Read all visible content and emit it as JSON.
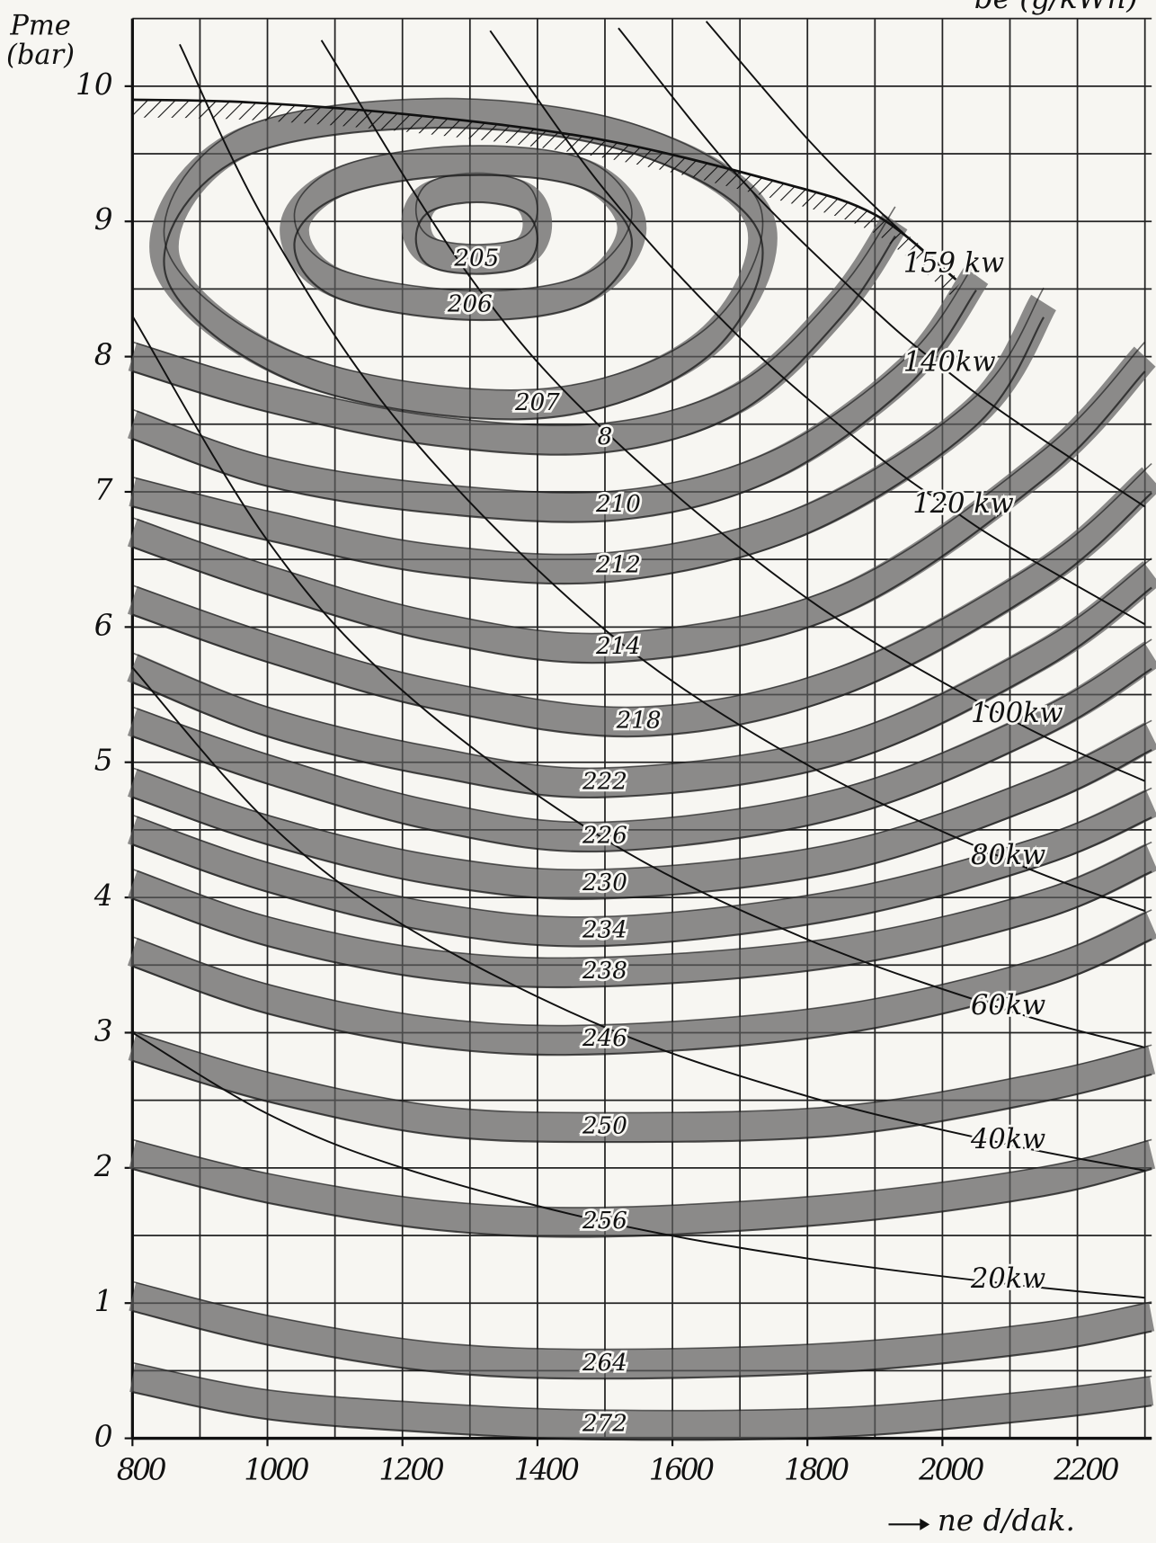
{
  "chart_data": {
    "type": "contour",
    "title": "be (g/kWh)",
    "ylabel": "Pme (bar)",
    "xlabel": "ne d/dak.",
    "xlim": [
      800,
      2310
    ],
    "ylim": [
      0,
      10.5
    ],
    "xticks": [
      800,
      1000,
      1200,
      1400,
      1600,
      1800,
      2000,
      2200
    ],
    "yticks": [
      0,
      1,
      2,
      3,
      4,
      5,
      6,
      7,
      8,
      9,
      10
    ],
    "xgrid": [
      800,
      900,
      1000,
      1100,
      1200,
      1300,
      1400,
      1500,
      1600,
      1700,
      1800,
      1900,
      2000,
      2100,
      2200,
      2300
    ],
    "ygrid": [
      0,
      0.5,
      1,
      1.5,
      2,
      2.5,
      3,
      3.5,
      4,
      4.5,
      5,
      5.5,
      6,
      6.5,
      7,
      7.5,
      8,
      8.5,
      9,
      9.5,
      10,
      10.5
    ],
    "grid": true,
    "band_color": "#5c5c5c",
    "line_color": "#111111",
    "contours": [
      {
        "name": "205",
        "closed": true,
        "x": [
          1310,
          1380,
          1400,
          1380,
          1310,
          1240,
          1220,
          1240
        ],
        "y": [
          9.25,
          9.18,
          8.98,
          8.78,
          8.72,
          8.78,
          8.98,
          9.18
        ]
      },
      {
        "name": "206",
        "closed": true,
        "x": [
          1290,
          1470,
          1540,
          1470,
          1300,
          1100,
          1040,
          1110
        ],
        "y": [
          9.45,
          9.35,
          8.95,
          8.5,
          8.38,
          8.55,
          8.95,
          9.3
        ]
      },
      {
        "name": "207",
        "closed": true,
        "x": [
          1250,
          1550,
          1730,
          1650,
          1400,
          1050,
          850,
          950
        ],
        "y": [
          9.8,
          9.6,
          9.0,
          8.1,
          7.65,
          7.9,
          8.7,
          9.55
        ]
      },
      {
        "name": "8",
        "closed": false,
        "x": [
          800,
          1000,
          1250,
          1500,
          1700,
          1850,
          1930
        ],
        "y": [
          8.0,
          7.7,
          7.45,
          7.4,
          7.7,
          8.4,
          9.0
        ]
      },
      {
        "name": "210",
        "closed": false,
        "x": [
          800,
          1000,
          1250,
          1520,
          1750,
          1950,
          2050
        ],
        "y": [
          7.5,
          7.15,
          6.95,
          6.9,
          7.2,
          7.9,
          8.6
        ]
      },
      {
        "name": "212",
        "closed": false,
        "x": [
          800,
          1000,
          1250,
          1520,
          1800,
          2050,
          2150
        ],
        "y": [
          7.0,
          6.75,
          6.5,
          6.45,
          6.8,
          7.6,
          8.4
        ]
      },
      {
        "name": "214",
        "closed": false,
        "x": [
          800,
          1000,
          1250,
          1520,
          1850,
          2150,
          2300
        ],
        "y": [
          6.7,
          6.35,
          6.0,
          5.85,
          6.2,
          7.2,
          8.0
        ]
      },
      {
        "name": "218",
        "closed": false,
        "x": [
          800,
          1000,
          1250,
          1550,
          1850,
          2150,
          2310
        ],
        "y": [
          6.2,
          5.85,
          5.5,
          5.3,
          5.6,
          6.4,
          7.1
        ]
      },
      {
        "name": "222",
        "closed": false,
        "x": [
          800,
          1000,
          1250,
          1500,
          1850,
          2150,
          2310
        ],
        "y": [
          5.7,
          5.3,
          5.0,
          4.85,
          5.1,
          5.8,
          6.4
        ]
      },
      {
        "name": "226",
        "closed": false,
        "x": [
          800,
          1000,
          1250,
          1500,
          1850,
          2150,
          2310
        ],
        "y": [
          5.3,
          4.95,
          4.6,
          4.45,
          4.7,
          5.3,
          5.8
        ]
      },
      {
        "name": "230",
        "closed": false,
        "x": [
          800,
          1000,
          1250,
          1500,
          1850,
          2150,
          2310
        ],
        "y": [
          4.85,
          4.5,
          4.2,
          4.1,
          4.3,
          4.8,
          5.2
        ]
      },
      {
        "name": "234",
        "closed": false,
        "x": [
          800,
          1000,
          1250,
          1500,
          1850,
          2150,
          2310
        ],
        "y": [
          4.5,
          4.15,
          3.85,
          3.75,
          3.95,
          4.35,
          4.7
        ]
      },
      {
        "name": "238",
        "closed": false,
        "x": [
          800,
          1000,
          1250,
          1500,
          1850,
          2150,
          2310
        ],
        "y": [
          4.1,
          3.75,
          3.5,
          3.45,
          3.6,
          3.95,
          4.3
        ]
      },
      {
        "name": "246",
        "closed": false,
        "x": [
          800,
          1000,
          1250,
          1500,
          1850,
          2150,
          2310
        ],
        "y": [
          3.6,
          3.25,
          3.0,
          2.95,
          3.1,
          3.45,
          3.8
        ]
      },
      {
        "name": "250",
        "closed": false,
        "x": [
          800,
          1000,
          1250,
          1500,
          1850,
          2150,
          2310
        ],
        "y": [
          2.9,
          2.6,
          2.35,
          2.3,
          2.35,
          2.6,
          2.8
        ]
      },
      {
        "name": "256",
        "closed": false,
        "x": [
          800,
          1000,
          1250,
          1500,
          1850,
          2150,
          2310
        ],
        "y": [
          2.1,
          1.85,
          1.65,
          1.6,
          1.7,
          1.9,
          2.1
        ]
      },
      {
        "name": "264",
        "closed": false,
        "x": [
          800,
          1000,
          1250,
          1500,
          1850,
          2150,
          2310
        ],
        "y": [
          1.05,
          0.8,
          0.6,
          0.55,
          0.6,
          0.75,
          0.9
        ]
      },
      {
        "name": "272",
        "closed": false,
        "x": [
          800,
          1000,
          1250,
          1500,
          1850,
          2150,
          2310
        ],
        "y": [
          0.45,
          0.25,
          0.15,
          0.1,
          0.12,
          0.25,
          0.35
        ]
      }
    ],
    "full_load": {
      "x": [
        800,
        975,
        1230,
        1500,
        1750,
        1900,
        2020
      ],
      "y": [
        9.9,
        9.88,
        9.78,
        9.6,
        9.3,
        9.05,
        8.57
      ]
    },
    "power_lines": [
      {
        "name": "159 kw",
        "x": [
          1650,
          1800,
          1906,
          2000
        ],
        "y": [
          10.48,
          9.61,
          9.08,
          8.65
        ]
      },
      {
        "name": "140kw",
        "x": [
          1520,
          1700,
          1900,
          2000,
          2100,
          2300
        ],
        "y": [
          10.43,
          9.32,
          8.34,
          7.92,
          7.55,
          6.89
        ]
      },
      {
        "name": "120 kw",
        "x": [
          1330,
          1500,
          1700,
          1900,
          2014,
          2100,
          2300
        ],
        "y": [
          10.41,
          9.23,
          8.14,
          7.28,
          6.87,
          6.59,
          6.02
        ]
      },
      {
        "name": "100kw",
        "x": [
          1080,
          1300,
          1500,
          1800,
          2100,
          2300
        ],
        "y": [
          10.34,
          8.59,
          7.45,
          6.21,
          5.32,
          4.86
        ]
      },
      {
        "name": "80kw",
        "x": [
          870,
          1000,
          1200,
          1500,
          1800,
          2100,
          2300
        ],
        "y": [
          10.31,
          8.97,
          7.48,
          5.98,
          4.98,
          4.27,
          3.9
        ]
      },
      {
        "name": "60kw",
        "x": [
          800,
          1000,
          1200,
          1500,
          1800,
          2100,
          2300
        ],
        "y": [
          8.3,
          6.64,
          5.53,
          4.43,
          3.69,
          3.16,
          2.89
        ]
      },
      {
        "name": "40kw",
        "x": [
          800,
          1000,
          1200,
          1500,
          1800,
          2100,
          2300
        ],
        "y": [
          5.7,
          4.56,
          3.8,
          3.04,
          2.53,
          2.17,
          1.98
        ]
      },
      {
        "name": "20kw",
        "x": [
          800,
          1000,
          1200,
          1500,
          1800,
          2100,
          2300
        ],
        "y": [
          3.0,
          2.4,
          2.0,
          1.6,
          1.33,
          1.14,
          1.04
        ]
      }
    ]
  }
}
